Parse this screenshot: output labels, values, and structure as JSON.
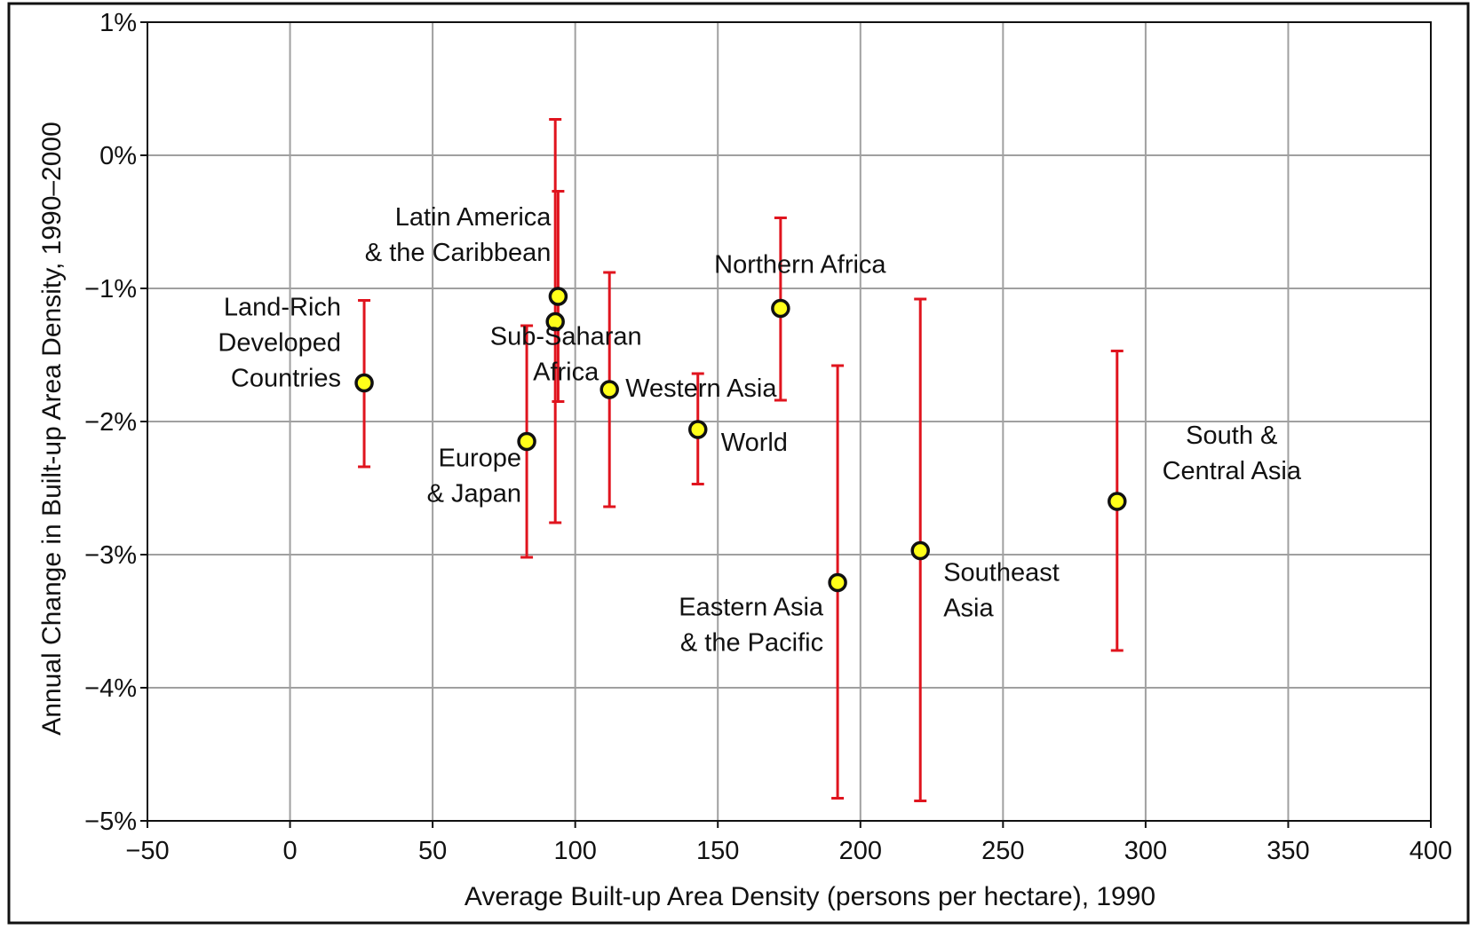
{
  "chart_data": {
    "type": "scatter",
    "xlabel": "Average Built-up Area Density (persons per hectare), 1990",
    "ylabel": "Annual Change in Built-up Area Density, 1990–2000",
    "xlim": [
      -50,
      400
    ],
    "ylim": [
      -5,
      1
    ],
    "x_ticks": [
      -50,
      0,
      50,
      100,
      150,
      200,
      250,
      300,
      350,
      400
    ],
    "x_tick_labels": [
      "−50",
      "0",
      "50",
      "100",
      "150",
      "200",
      "250",
      "300",
      "350",
      "400"
    ],
    "y_ticks": [
      1,
      0,
      -1,
      -2,
      -3,
      -4,
      -5
    ],
    "y_tick_labels": [
      "1%",
      "0%",
      "−1%",
      "−2%",
      "−3%",
      "−4%",
      "−5%"
    ],
    "grid": true,
    "legend": "none",
    "colors": {
      "point_fill": "#ffff1a",
      "point_stroke": "#111111",
      "error_bar": "#e0141e",
      "grid": "#a0a0a0",
      "frame": "#111111"
    },
    "points": [
      {
        "label_lines": [
          "Land-Rich",
          "Developed",
          "Countries"
        ],
        "x": 26,
        "y": -1.71,
        "y_low": -2.34,
        "y_high": -1.09
      },
      {
        "label_lines": [
          "Europe",
          "& Japan"
        ],
        "x": 83,
        "y": -2.15,
        "y_low": -3.02,
        "y_high": -1.28
      },
      {
        "label_lines": [
          "Latin America",
          "& the Caribbean"
        ],
        "x": 94,
        "y": -1.06,
        "y_low": -1.85,
        "y_high": -0.27
      },
      {
        "label_lines": [
          "Sub-Saharan",
          "Africa"
        ],
        "x": 93,
        "y": -1.25,
        "y_low": -2.76,
        "y_high": 0.27
      },
      {
        "label_lines": [
          "Western Asia"
        ],
        "x": 112,
        "y": -1.76,
        "y_low": -2.64,
        "y_high": -0.88
      },
      {
        "label_lines": [
          "World"
        ],
        "x": 143,
        "y": -2.06,
        "y_low": -2.47,
        "y_high": -1.64
      },
      {
        "label_lines": [
          "Northern Africa"
        ],
        "x": 172,
        "y": -1.15,
        "y_low": -1.84,
        "y_high": -0.47
      },
      {
        "label_lines": [
          "Eastern Asia",
          "& the Pacific"
        ],
        "x": 192,
        "y": -3.21,
        "y_low": -4.83,
        "y_high": -1.58
      },
      {
        "label_lines": [
          "Southeast",
          "Asia"
        ],
        "x": 221,
        "y": -2.97,
        "y_low": -4.85,
        "y_high": -1.08
      },
      {
        "label_lines": [
          "South &",
          "Central Asia"
        ],
        "x": 290,
        "y": -2.6,
        "y_low": -3.72,
        "y_high": -1.47
      }
    ]
  }
}
